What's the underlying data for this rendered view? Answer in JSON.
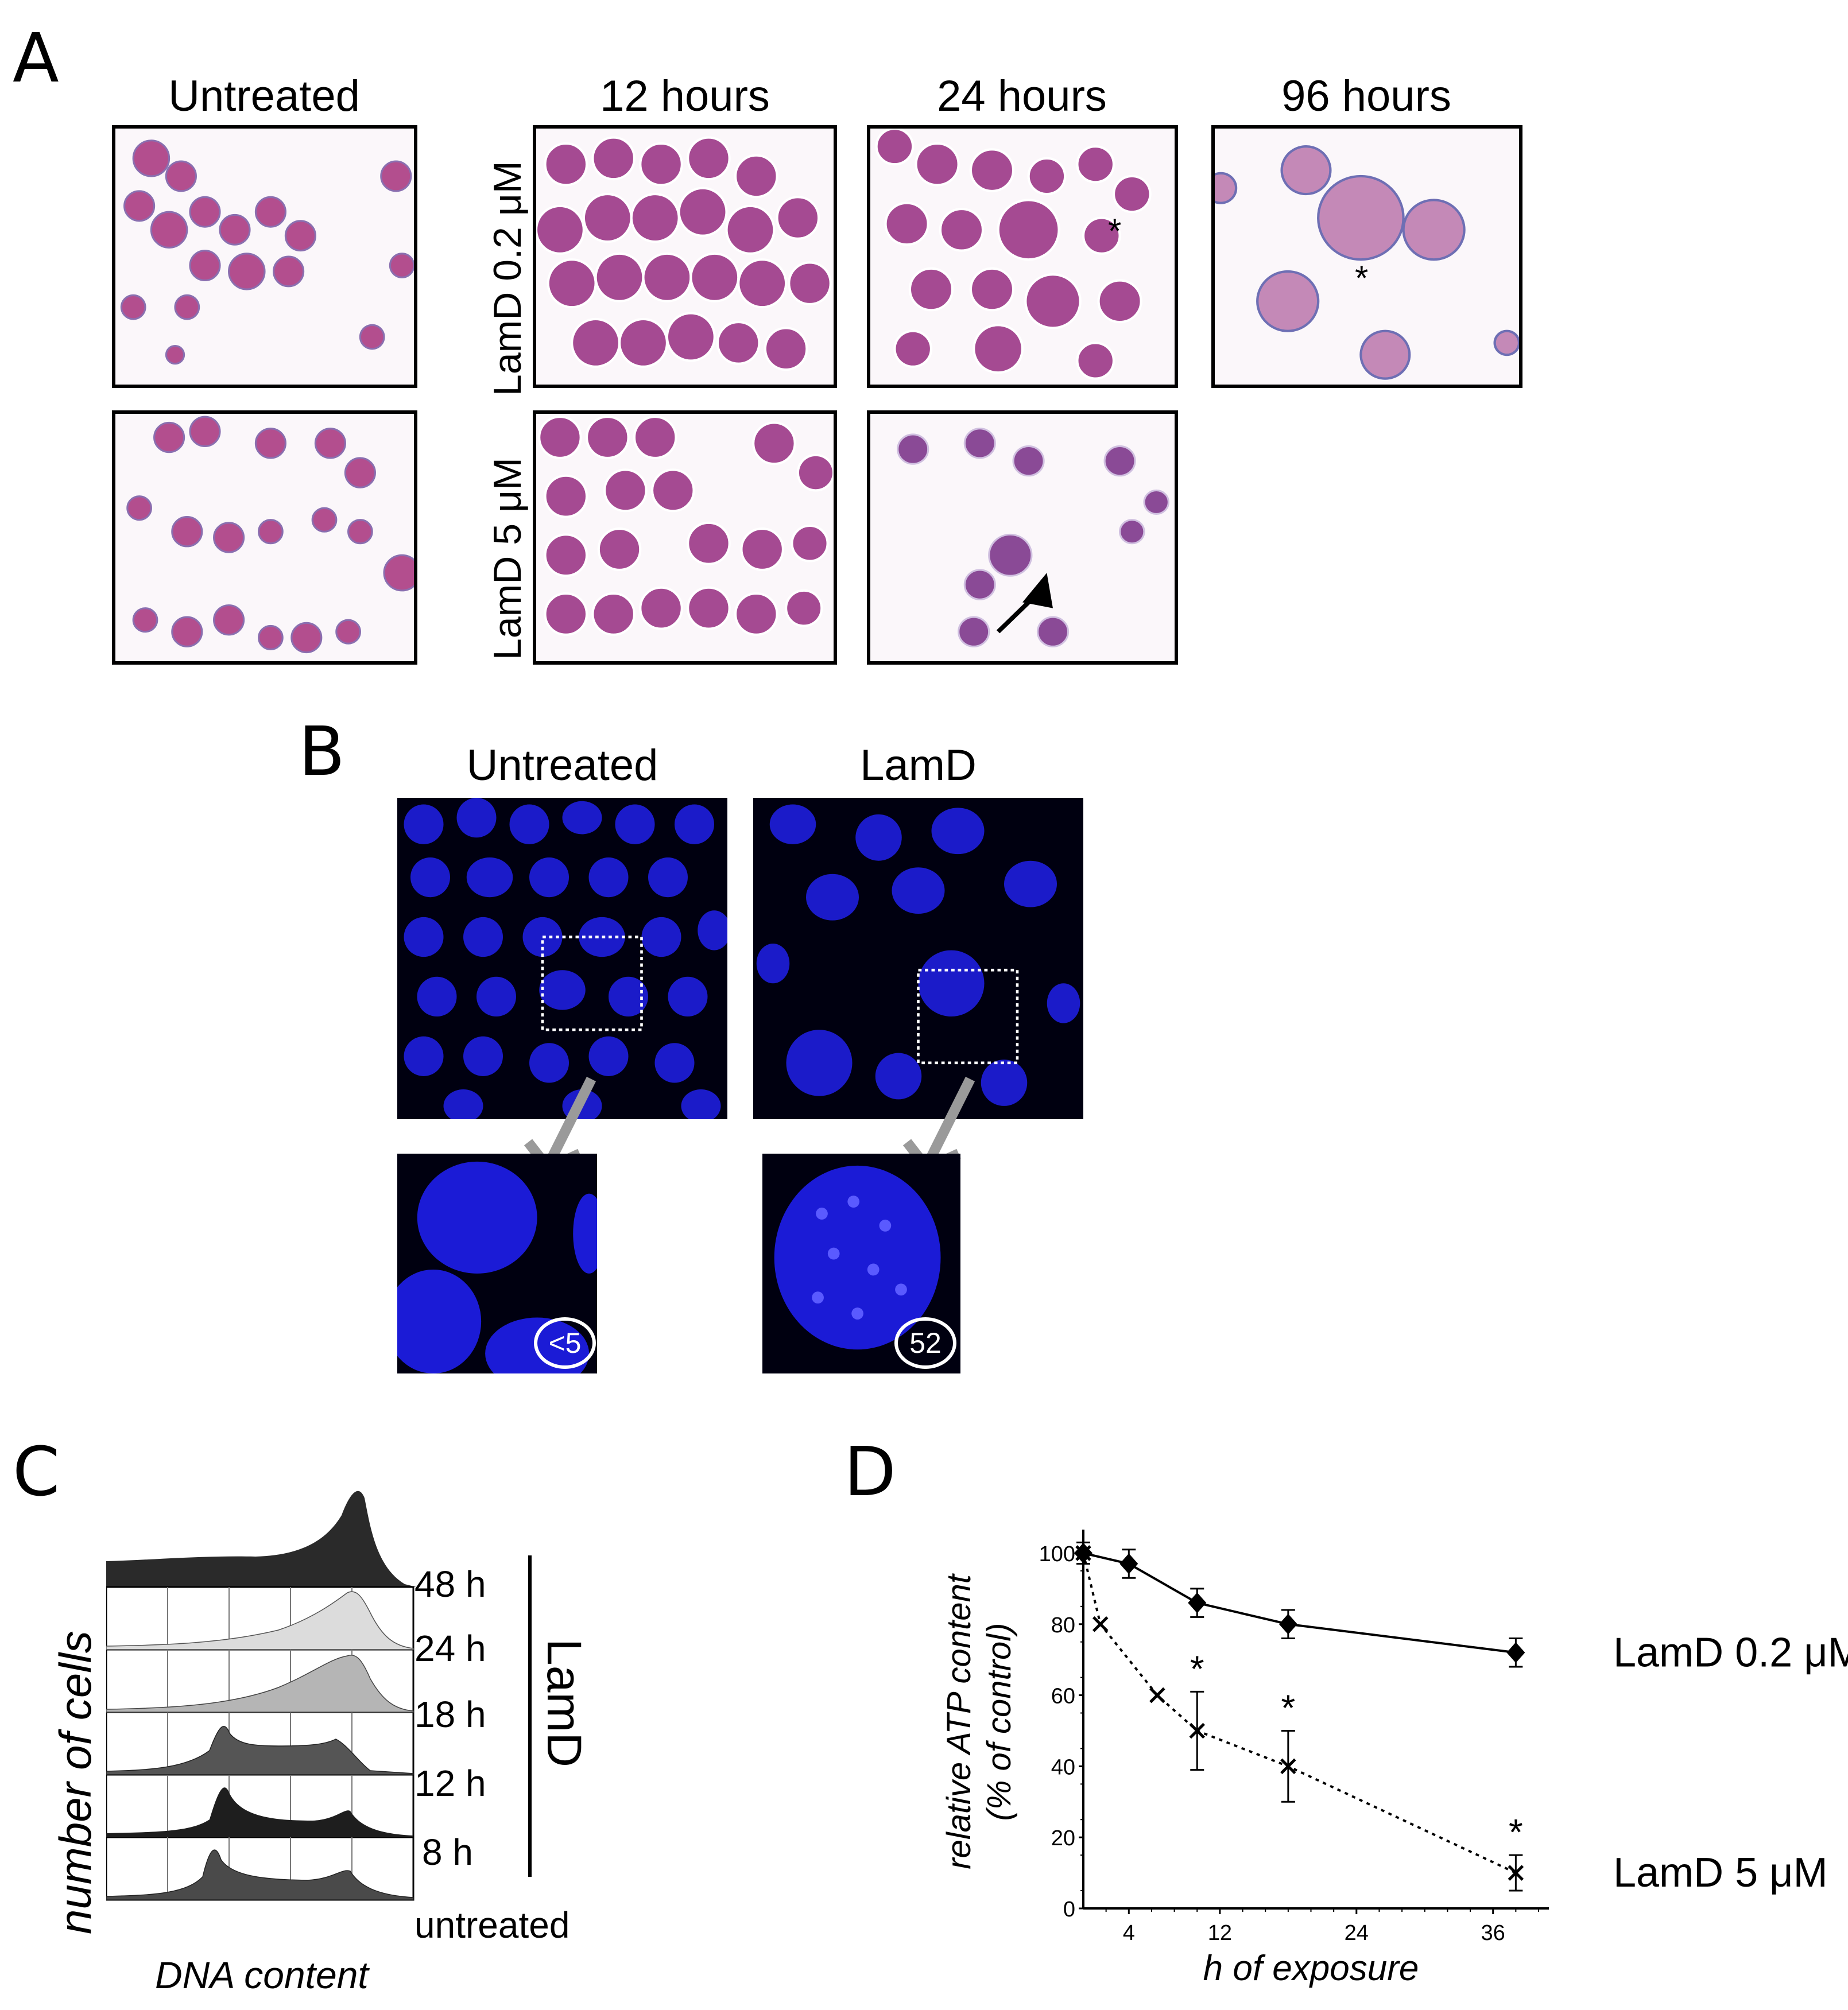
{
  "panels": {
    "a": {
      "letter": "A",
      "col_untreated": "Untreated",
      "col_12": "12 hours",
      "col_24": "24 hours",
      "col_96": "96 hours",
      "row_low": "LamD 0.2 μM",
      "row_high": "LamD 5 μM",
      "asterisk_24": "*",
      "asterisk_96": "*"
    },
    "b": {
      "letter": "B",
      "col_untreated": "Untreated",
      "col_lamd": "LamD",
      "badge_untreated": "<5",
      "badge_lamd": "52"
    },
    "c": {
      "letter": "C",
      "ylabel": "number of cells",
      "xlabel": "DNA content",
      "group_label": "LamD",
      "rows": [
        "48 h",
        "24 h",
        "18 h",
        "12 h",
        "8 h",
        "untreated"
      ]
    },
    "d": {
      "letter": "D"
    }
  },
  "colors": {
    "stain_purple": "#b34e8e",
    "stain_blue": "#6e6fb4",
    "dapi_blue": "#1b1bd6"
  },
  "chart_data": {
    "type": "line",
    "xlabel": "h of exposure",
    "ylabel": "relative ATP content (% of control)",
    "xticks": [
      4,
      12,
      24,
      36
    ],
    "yticks": [
      0,
      20,
      40,
      60,
      80,
      100
    ],
    "xlim": [
      0,
      40
    ],
    "ylim": [
      0,
      105
    ],
    "series": [
      {
        "name": "LamD 0.2 μM",
        "style": "solid",
        "marker": "diamond",
        "x": [
          0,
          4,
          10,
          18,
          38
        ],
        "y": [
          100,
          97,
          86,
          80,
          72
        ],
        "err": [
          3,
          4,
          4,
          4,
          4
        ]
      },
      {
        "name": "LamD 5 μM",
        "style": "dotted",
        "marker": "x",
        "x": [
          0,
          1.5,
          6.5,
          10,
          18,
          38
        ],
        "y": [
          100,
          80,
          60,
          50,
          40,
          10
        ],
        "err": [
          0,
          0,
          0,
          11,
          10,
          5
        ]
      }
    ],
    "significance": [
      {
        "series": 1,
        "x": 10,
        "label": "*"
      },
      {
        "series": 1,
        "x": 18,
        "label": "*"
      },
      {
        "series": 1,
        "x": 38,
        "label": "*"
      }
    ]
  }
}
